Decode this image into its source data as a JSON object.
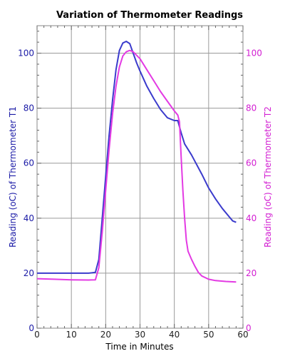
{
  "chart_data": {
    "type": "line",
    "title": "Variation of Thermometer Readings",
    "xlabel": "Time in Minutes",
    "ylabel_left": "Reading (oC) of Thermometer T1",
    "ylabel_right": "Reading (oC) of Thermometer T2",
    "xlim": [
      0,
      60
    ],
    "ylim": [
      0,
      110
    ],
    "x_ticks": [
      0,
      10,
      20,
      30,
      40,
      50,
      60
    ],
    "y_ticks": [
      0,
      20,
      40,
      60,
      80,
      100
    ],
    "grid": true,
    "series": [
      {
        "axis": "left",
        "color": "#3b3bcc",
        "points": [
          [
            0,
            20
          ],
          [
            5,
            20
          ],
          [
            10,
            20
          ],
          [
            15,
            20
          ],
          [
            17,
            20.3
          ],
          [
            18,
            25
          ],
          [
            19,
            40
          ],
          [
            20,
            55
          ],
          [
            21,
            70
          ],
          [
            22,
            83
          ],
          [
            23,
            94
          ],
          [
            24,
            101
          ],
          [
            25,
            103.7
          ],
          [
            26,
            104.3
          ],
          [
            27,
            103.5
          ],
          [
            28,
            100
          ],
          [
            29,
            96.5
          ],
          [
            30,
            93.5
          ],
          [
            32,
            88
          ],
          [
            34,
            83.5
          ],
          [
            36,
            79.5
          ],
          [
            38,
            76.5
          ],
          [
            40,
            75.5
          ],
          [
            41,
            75.5
          ],
          [
            42,
            71
          ],
          [
            43,
            67
          ],
          [
            45,
            63
          ],
          [
            48,
            56
          ],
          [
            50,
            51
          ],
          [
            52,
            47
          ],
          [
            54,
            43.5
          ],
          [
            56,
            40.5
          ],
          [
            57,
            39
          ],
          [
            58,
            38.5
          ]
        ]
      },
      {
        "axis": "right",
        "color": "#e33ae3",
        "points": [
          [
            0,
            18
          ],
          [
            5,
            17.8
          ],
          [
            10,
            17.6
          ],
          [
            15,
            17.5
          ],
          [
            17,
            17.6
          ],
          [
            18,
            22
          ],
          [
            19,
            35
          ],
          [
            20,
            50
          ],
          [
            21,
            65
          ],
          [
            22,
            78
          ],
          [
            23,
            88
          ],
          [
            24,
            95
          ],
          [
            25,
            99
          ],
          [
            26,
            100.5
          ],
          [
            27,
            101
          ],
          [
            28,
            100.5
          ],
          [
            30,
            98
          ],
          [
            32,
            94
          ],
          [
            34,
            90
          ],
          [
            36,
            86
          ],
          [
            38,
            82.5
          ],
          [
            40,
            79
          ],
          [
            41,
            77.5
          ],
          [
            41.5,
            75
          ],
          [
            42,
            62
          ],
          [
            42.5,
            50
          ],
          [
            43,
            40
          ],
          [
            43.5,
            32
          ],
          [
            44,
            28
          ],
          [
            45,
            25
          ],
          [
            46,
            22.5
          ],
          [
            47,
            20.3
          ],
          [
            48,
            19
          ],
          [
            50,
            17.8
          ],
          [
            52,
            17.3
          ],
          [
            55,
            17
          ],
          [
            58,
            16.8
          ]
        ]
      }
    ]
  }
}
